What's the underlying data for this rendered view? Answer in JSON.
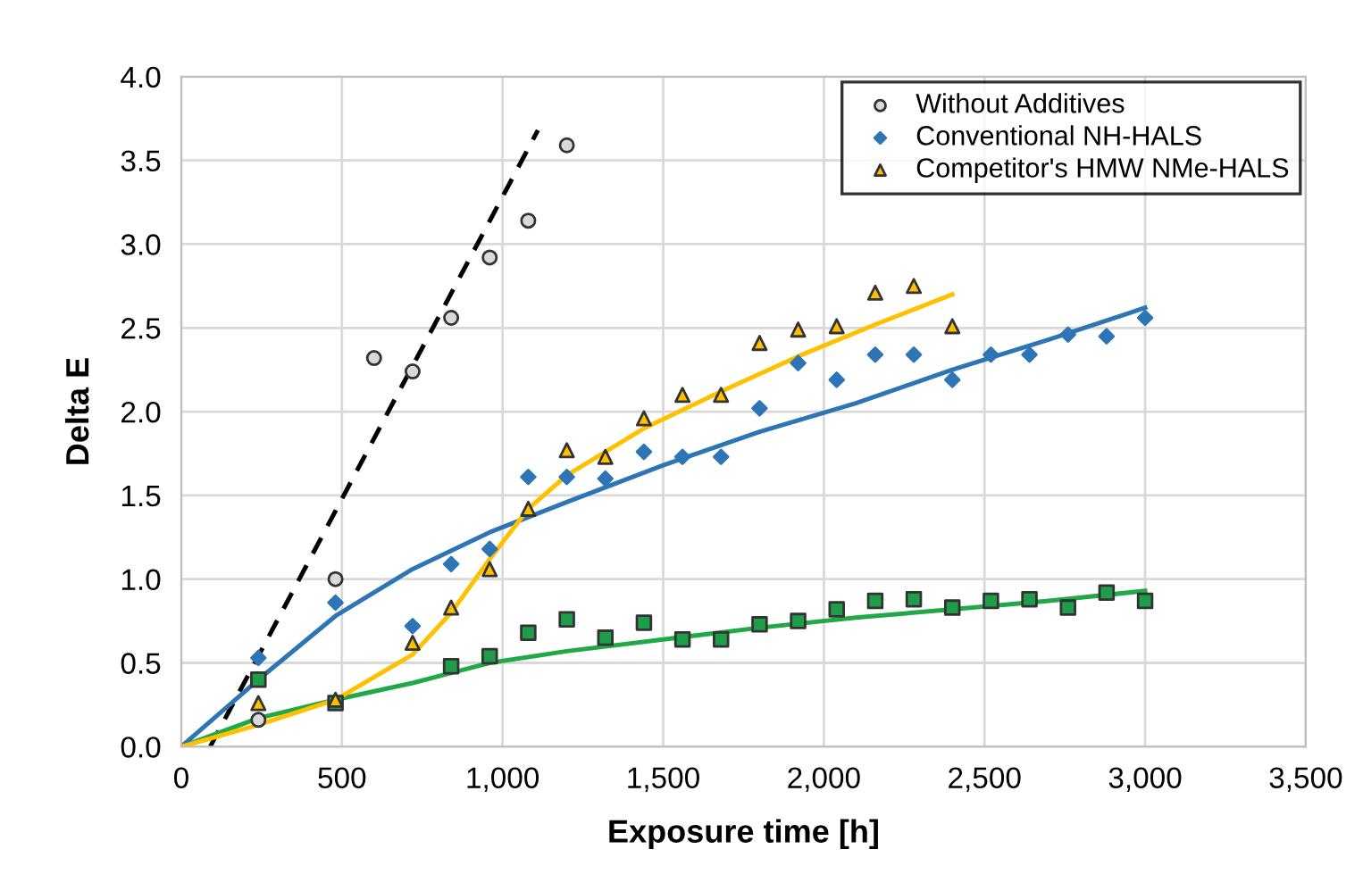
{
  "chart_data": {
    "type": "scatter",
    "xlabel": "Exposure time [h]",
    "ylabel": "Delta E",
    "xlim": [
      0,
      3500
    ],
    "xticks": [
      {
        "value": 0,
        "label": "0"
      },
      {
        "value": 500,
        "label": "500"
      },
      {
        "value": 1000,
        "label": "1,000"
      },
      {
        "value": 1500,
        "label": "1,500"
      },
      {
        "value": 2000,
        "label": "2,000"
      },
      {
        "value": 2500,
        "label": "2,500"
      },
      {
        "value": 3000,
        "label": "3,000"
      },
      {
        "value": 3500,
        "label": "3,500"
      }
    ],
    "ylim": [
      0,
      4
    ],
    "yticks": [
      {
        "value": 0,
        "label": "0.0"
      },
      {
        "value": 0.5,
        "label": "0.5"
      },
      {
        "value": 1,
        "label": "1.0"
      },
      {
        "value": 1.5,
        "label": "1.5"
      },
      {
        "value": 2,
        "label": "2.0"
      },
      {
        "value": 2.5,
        "label": "2.5"
      },
      {
        "value": 3,
        "label": "3.0"
      },
      {
        "value": 3.5,
        "label": "3.5"
      },
      {
        "value": 4,
        "label": "4.0"
      }
    ],
    "grid": true,
    "legend": "top right",
    "series": [
      {
        "name": "Without Additives",
        "color": "#d9d9d9",
        "marker": "circle",
        "x": [
          240,
          480,
          600,
          720,
          840,
          960,
          1080,
          1200
        ],
        "values": [
          0.16,
          1.0,
          2.32,
          2.24,
          2.56,
          2.92,
          3.14,
          3.59
        ]
      },
      {
        "color": "#1e9e4a",
        "marker": "square",
        "x": [
          240,
          480,
          840,
          960,
          1080,
          1200,
          1320,
          1440,
          1560,
          1680,
          1800,
          1920,
          2040,
          2160,
          2280,
          2400,
          2520,
          2640,
          2760,
          2880,
          3000
        ],
        "values": [
          0.4,
          0.26,
          0.48,
          0.54,
          0.68,
          0.76,
          0.65,
          0.74,
          0.64,
          0.64,
          0.73,
          0.75,
          0.82,
          0.87,
          0.88,
          0.83,
          0.87,
          0.88,
          0.83,
          0.92,
          0.87
        ]
      },
      {
        "name": "Conventional NH-HALS",
        "color": "#2e75b6",
        "marker": "diamond",
        "x": [
          240,
          480,
          720,
          840,
          960,
          1080,
          1200,
          1320,
          1440,
          1560,
          1680,
          1800,
          1920,
          2040,
          2160,
          2280,
          2400,
          2520,
          2640,
          2760,
          2880,
          3000
        ],
        "values": [
          0.53,
          0.86,
          0.72,
          1.09,
          1.18,
          1.61,
          1.61,
          1.6,
          1.76,
          1.73,
          1.73,
          2.02,
          2.29,
          2.19,
          2.34,
          2.34,
          2.19,
          2.34,
          2.34,
          2.46,
          2.45,
          2.56
        ]
      },
      {
        "name": "Competitor's HMW NMe-HALS",
        "color": "#ffc000",
        "marker": "triangle",
        "x": [
          240,
          480,
          720,
          840,
          960,
          1080,
          1200,
          1320,
          1440,
          1560,
          1680,
          1800,
          1920,
          2040,
          2160,
          2280,
          2400
        ],
        "values": [
          0.26,
          0.28,
          0.62,
          0.83,
          1.06,
          1.42,
          1.77,
          1.73,
          1.96,
          2.1,
          2.1,
          2.41,
          2.49,
          2.51,
          2.71,
          2.75,
          2.51
        ]
      },
      {
        "type": "line",
        "color": "#000000",
        "line_style": "dashed",
        "x": [
          90,
          1110
        ],
        "values": [
          0,
          3.68
        ]
      },
      {
        "type": "line",
        "color": "#22a847",
        "line_style": "solid",
        "x": [
          0,
          240,
          480,
          720,
          960,
          1200,
          1500,
          1800,
          2100,
          2400,
          2700,
          3000
        ],
        "values": [
          0,
          0.17,
          0.28,
          0.38,
          0.5,
          0.57,
          0.64,
          0.71,
          0.77,
          0.82,
          0.87,
          0.93
        ]
      },
      {
        "type": "line",
        "color": "#2e75b6",
        "line_style": "solid",
        "x": [
          0,
          240,
          480,
          720,
          960,
          1200,
          1500,
          1800,
          2100,
          2400,
          2700,
          3000
        ],
        "values": [
          0,
          0.4,
          0.78,
          1.06,
          1.28,
          1.46,
          1.68,
          1.88,
          2.05,
          2.25,
          2.43,
          2.62
        ]
      },
      {
        "type": "line",
        "color": "#ffc000",
        "line_style": "solid",
        "x": [
          0,
          240,
          480,
          720,
          840,
          960,
          1080,
          1200,
          1440,
          1680,
          1920,
          2160,
          2400
        ],
        "values": [
          0,
          0.13,
          0.28,
          0.55,
          0.8,
          1.12,
          1.42,
          1.62,
          1.9,
          2.12,
          2.33,
          2.52,
          2.7
        ]
      }
    ]
  }
}
